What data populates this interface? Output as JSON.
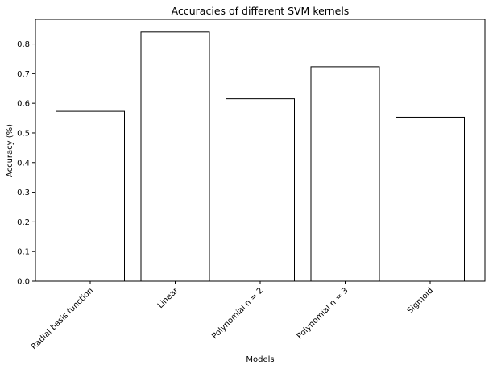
{
  "chart_data": {
    "type": "bar",
    "title": "Accuracies of different SVM kernels",
    "xlabel": "Models",
    "ylabel": "Accuracy (%)",
    "categories": [
      "Radial basis function",
      "Linear",
      "Polynomial n = 2",
      "Polynomial n = 3",
      "Sigmoid"
    ],
    "values": [
      0.573,
      0.84,
      0.615,
      0.723,
      0.553
    ],
    "ylim": [
      0,
      0.883
    ],
    "yticks": [
      "0.0",
      "0.1",
      "0.2",
      "0.3",
      "0.4",
      "0.5",
      "0.6",
      "0.7",
      "0.8"
    ],
    "grid": false,
    "legend": "none",
    "colors": {
      "bar_fill": "#ffffff",
      "bar_edge": "#000000",
      "axis": "#000000"
    }
  }
}
